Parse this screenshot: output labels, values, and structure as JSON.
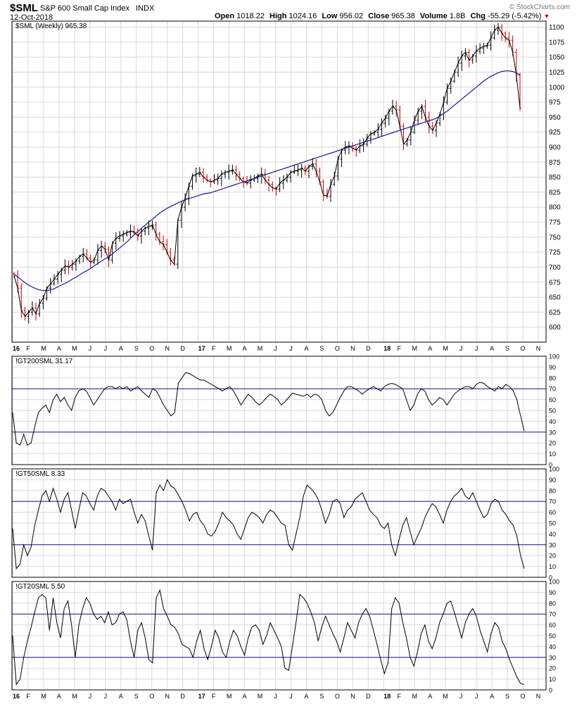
{
  "header": {
    "symbol": "$SML",
    "name": "S&P 600 Small Cap Index",
    "exchange": "INDX",
    "date": "12-Oct-2018",
    "watermark": "© StockCharts.com",
    "quote_labels": [
      "Open",
      "High",
      "Low",
      "Close",
      "Volume",
      "Chg"
    ],
    "quote_values": [
      "1018.22",
      "1024.16",
      "956.02",
      "965.38",
      "1.8B",
      "-55.29 (-5.42%)"
    ],
    "chg_direction": "down",
    "colors": {
      "down": "#cc0000",
      "up": "#000000",
      "ma": "#1a1a8c",
      "ref_line": "#1a1a8c",
      "grid": "#d9d9d9"
    }
  },
  "chart_data": [
    {
      "type": "ohlc",
      "legend": "$SML (Weekly) 965.38",
      "ylim": [
        575,
        1110
      ],
      "yticks": [
        600,
        625,
        650,
        675,
        700,
        725,
        750,
        775,
        800,
        825,
        850,
        875,
        900,
        925,
        950,
        975,
        1000,
        1025,
        1050,
        1075,
        1100
      ],
      "xticks": [
        "16",
        "F",
        "M",
        "A",
        "M",
        "J",
        "J",
        "A",
        "S",
        "O",
        "N",
        "D",
        "17",
        "F",
        "M",
        "A",
        "M",
        "J",
        "J",
        "A",
        "S",
        "O",
        "N",
        "D",
        "18",
        "F",
        "M",
        "A",
        "M",
        "J",
        "J",
        "A",
        "S",
        "O",
        "N"
      ],
      "close_weekly": [
        685,
        665,
        628,
        618,
        625,
        632,
        622,
        640,
        648,
        665,
        672,
        680,
        688,
        695,
        702,
        700,
        705,
        710,
        718,
        722,
        715,
        708,
        712,
        728,
        735,
        730,
        712,
        740,
        748,
        752,
        755,
        758,
        760,
        758,
        752,
        760,
        765,
        768,
        770,
        755,
        742,
        738,
        725,
        712,
        705,
        778,
        800,
        815,
        835,
        852,
        855,
        858,
        850,
        845,
        842,
        845,
        848,
        855,
        858,
        860,
        862,
        855,
        848,
        842,
        840,
        845,
        848,
        852,
        855,
        845,
        838,
        832,
        830,
        840,
        845,
        850,
        858,
        860,
        862,
        865,
        860,
        868,
        872,
        860,
        842,
        820,
        818,
        838,
        852,
        880,
        895,
        900,
        902,
        898,
        895,
        902,
        905,
        915,
        922,
        925,
        930,
        940,
        948,
        960,
        968,
        962,
        935,
        905,
        912,
        925,
        945,
        960,
        968,
        950,
        935,
        928,
        940,
        955,
        975,
        998,
        1010,
        1025,
        1040,
        1052,
        1058,
        1045,
        1052,
        1060,
        1065,
        1068,
        1070,
        1082,
        1095,
        1100,
        1090,
        1082,
        1078,
        1058,
        1020,
        965
      ],
      "ma_30w": [
        688,
        684,
        679,
        674,
        670,
        667,
        664,
        662,
        661,
        661,
        662,
        664,
        667,
        670,
        673,
        676,
        680,
        683,
        687,
        691,
        694,
        698,
        702,
        706,
        710,
        714,
        717,
        722,
        727,
        732,
        737,
        742,
        748,
        754,
        759,
        765,
        770,
        775,
        780,
        785,
        790,
        794,
        798,
        801,
        804,
        807,
        810,
        812,
        814,
        816,
        818,
        820,
        822,
        823,
        824,
        826,
        828,
        830,
        832,
        834,
        836,
        838,
        840,
        842,
        844,
        846,
        848,
        850,
        852,
        854,
        856,
        858,
        860,
        862,
        864,
        866,
        868,
        870,
        872,
        874,
        876,
        878,
        880,
        882,
        884,
        886,
        888,
        890,
        892,
        894,
        896,
        898,
        900,
        902,
        904,
        906,
        908,
        910,
        912,
        914,
        916,
        918,
        920,
        922,
        924,
        926,
        928,
        930,
        932,
        934,
        936,
        938,
        940,
        942,
        944,
        946,
        948,
        952,
        956,
        960,
        965,
        970,
        975,
        980,
        985,
        990,
        995,
        1000,
        1005,
        1010,
        1014,
        1018,
        1021,
        1024,
        1026,
        1027,
        1027,
        1026,
        1024,
        1020
      ]
    },
    {
      "type": "line",
      "legend": "!GT200SML 31.17",
      "ylim": [
        0,
        100
      ],
      "yticks": [
        0,
        10,
        20,
        30,
        40,
        50,
        60,
        70,
        80,
        90,
        100
      ],
      "ref_lines": [
        30,
        70
      ],
      "values": [
        48,
        20,
        18,
        28,
        18,
        20,
        35,
        48,
        52,
        55,
        48,
        60,
        65,
        58,
        62,
        55,
        50,
        62,
        68,
        70,
        68,
        62,
        55,
        60,
        65,
        70,
        72,
        72,
        70,
        72,
        70,
        72,
        68,
        70,
        72,
        68,
        65,
        62,
        70,
        68,
        62,
        55,
        50,
        45,
        48,
        75,
        80,
        85,
        84,
        82,
        80,
        78,
        78,
        76,
        74,
        72,
        70,
        68,
        70,
        72,
        68,
        62,
        55,
        60,
        65,
        62,
        58,
        55,
        58,
        62,
        65,
        63,
        60,
        55,
        58,
        62,
        66,
        65,
        64,
        63,
        65,
        62,
        65,
        64,
        60,
        50,
        45,
        48,
        55,
        62,
        68,
        72,
        72,
        70,
        68,
        65,
        68,
        70,
        72,
        70,
        68,
        72,
        74,
        75,
        74,
        72,
        70,
        60,
        50,
        55,
        65,
        70,
        68,
        60,
        55,
        58,
        62,
        60,
        55,
        60,
        65,
        68,
        70,
        72,
        72,
        70,
        74,
        76,
        75,
        72,
        70,
        68,
        72,
        70,
        74,
        72,
        68,
        60,
        45,
        31
      ]
    },
    {
      "type": "line",
      "legend": "!GT50SML 8.33",
      "ylim": [
        0,
        100
      ],
      "yticks": [
        0,
        10,
        20,
        30,
        40,
        50,
        60,
        70,
        80,
        90,
        100
      ],
      "ref_lines": [
        30,
        70
      ],
      "values": [
        45,
        8,
        12,
        30,
        20,
        28,
        48,
        62,
        75,
        80,
        70,
        82,
        72,
        60,
        72,
        78,
        62,
        45,
        62,
        78,
        75,
        68,
        62,
        75,
        82,
        80,
        75,
        70,
        62,
        72,
        68,
        70,
        72,
        60,
        50,
        58,
        52,
        38,
        25,
        78,
        85,
        80,
        90,
        84,
        82,
        76,
        70,
        62,
        52,
        58,
        60,
        52,
        48,
        40,
        38,
        42,
        50,
        60,
        55,
        52,
        48,
        40,
        35,
        45,
        55,
        60,
        58,
        55,
        50,
        58,
        62,
        60,
        55,
        50,
        48,
        30,
        25,
        40,
        55,
        75,
        85,
        82,
        78,
        72,
        62,
        50,
        58,
        70,
        72,
        68,
        55,
        62,
        65,
        72,
        75,
        78,
        70,
        62,
        58,
        55,
        48,
        45,
        50,
        30,
        20,
        35,
        48,
        55,
        42,
        30,
        38,
        45,
        55,
        62,
        68,
        65,
        58,
        50,
        62,
        70,
        75,
        78,
        82,
        75,
        72,
        78,
        70,
        62,
        55,
        58,
        68,
        72,
        70,
        62,
        58,
        52,
        48,
        38,
        20,
        8
      ]
    },
    {
      "type": "line",
      "legend": "!GT20SML 5.50",
      "ylim": [
        0,
        100
      ],
      "yticks": [
        0,
        10,
        20,
        30,
        40,
        50,
        60,
        70,
        80,
        90,
        100
      ],
      "ref_lines": [
        30,
        70
      ],
      "values": [
        50,
        5,
        10,
        30,
        45,
        58,
        72,
        85,
        88,
        85,
        55,
        85,
        62,
        48,
        75,
        82,
        60,
        30,
        60,
        75,
        85,
        80,
        70,
        65,
        68,
        62,
        72,
        60,
        62,
        70,
        72,
        65,
        45,
        30,
        55,
        62,
        48,
        28,
        25,
        85,
        92,
        75,
        68,
        60,
        58,
        52,
        42,
        40,
        38,
        30,
        45,
        55,
        38,
        28,
        40,
        55,
        48,
        35,
        30,
        45,
        55,
        50,
        40,
        32,
        48,
        58,
        60,
        55,
        42,
        50,
        62,
        55,
        48,
        40,
        20,
        18,
        40,
        62,
        88,
        85,
        80,
        72,
        62,
        45,
        58,
        68,
        60,
        52,
        45,
        35,
        48,
        62,
        55,
        48,
        62,
        70,
        75,
        68,
        55,
        42,
        28,
        15,
        25,
        75,
        85,
        80,
        62,
        48,
        30,
        22,
        35,
        52,
        60,
        45,
        38,
        48,
        62,
        70,
        80,
        82,
        72,
        60,
        48,
        62,
        70,
        75,
        68,
        55,
        45,
        35,
        52,
        62,
        58,
        45,
        38,
        28,
        20,
        12,
        6,
        5
      ]
    }
  ]
}
